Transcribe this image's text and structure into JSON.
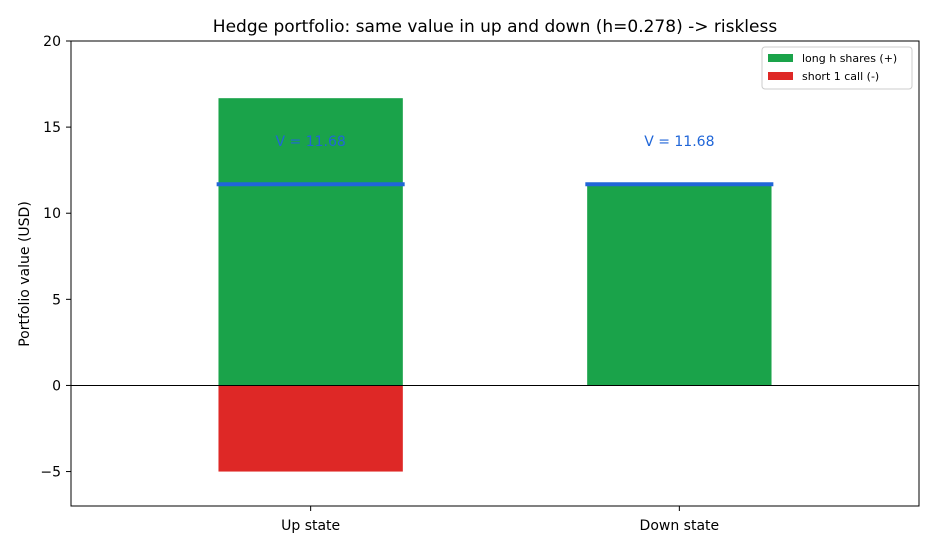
{
  "chart_data": {
    "type": "bar",
    "title": "Hedge portfolio: same value in up and down (h=0.278) -> riskless",
    "xlabel": "",
    "ylabel": "Portfolio value (USD)",
    "categories": [
      "Up state",
      "Down state"
    ],
    "ylim": [
      -7,
      20
    ],
    "yticks": [
      -5,
      0,
      5,
      10,
      15,
      20
    ],
    "ytick_labels": [
      "−5",
      "0",
      "5",
      "10",
      "15",
      "20"
    ],
    "series": [
      {
        "name": "long h shares (+)",
        "values": [
          16.68,
          11.68
        ],
        "color": "#1aa34a"
      },
      {
        "name": "short 1 call (-)",
        "values": [
          -5.0,
          0.0
        ],
        "color": "#de2826"
      }
    ],
    "portfolio_values": [
      11.68,
      11.68
    ],
    "portfolio_color": "#2066d8",
    "annotations": [
      "V = 11.68",
      "V = 11.68"
    ],
    "annotation_y": 14.2,
    "zero_line": true,
    "grid": false,
    "legend_position": "top-right"
  }
}
